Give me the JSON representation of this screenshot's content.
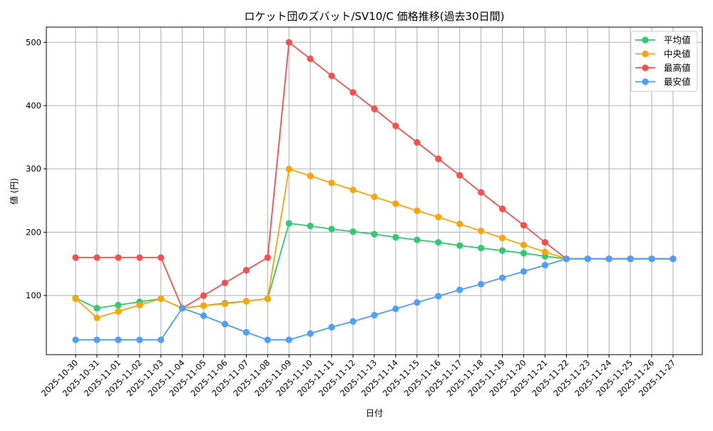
{
  "chart_data": {
    "type": "line",
    "title": "ロケット団のズバット/SV10/C 価格推移(過去30日間)",
    "xlabel": "日付",
    "ylabel": "値 (円)",
    "ylim": [
      6.6,
      524
    ],
    "yticks": [
      100,
      200,
      300,
      400,
      500
    ],
    "grid": true,
    "legend_position": "upper right",
    "x": [
      "2025-10-30",
      "2025-10-31",
      "2025-11-01",
      "2025-11-02",
      "2025-11-03",
      "2025-11-04",
      "2025-11-05",
      "2025-11-06",
      "2025-11-07",
      "2025-11-08",
      "2025-11-09",
      "2025-11-10",
      "2025-11-11",
      "2025-11-12",
      "2025-11-13",
      "2025-11-14",
      "2025-11-15",
      "2025-11-16",
      "2025-11-17",
      "2025-11-18",
      "2025-11-19",
      "2025-11-20",
      "2025-11-21",
      "2025-11-22",
      "2025-11-23",
      "2025-11-24",
      "2025-11-25",
      "2025-11-26",
      "2025-11-27"
    ],
    "series": [
      {
        "name": "平均値",
        "color": "#2ecc71",
        "values": [
          96,
          80,
          85,
          90,
          95,
          80,
          84,
          88,
          91,
          95,
          214,
          210,
          205,
          201,
          197,
          192,
          188,
          184,
          179,
          175,
          171,
          167,
          162,
          158,
          158,
          158,
          158,
          158,
          158
        ]
      },
      {
        "name": "中央値",
        "color": "#ffa500",
        "values": [
          95,
          65,
          75,
          85,
          95,
          80,
          84,
          87,
          91,
          95,
          300,
          289,
          278,
          267,
          256,
          245,
          234,
          224,
          213,
          202,
          191,
          180,
          169,
          158,
          158,
          158,
          158,
          158,
          158
        ]
      },
      {
        "name": "最高値",
        "color": "#ff4d4d",
        "values": [
          160,
          160,
          160,
          160,
          160,
          80,
          100,
          120,
          140,
          160,
          500,
          474,
          447,
          421,
          395,
          368,
          342,
          316,
          290,
          263,
          237,
          211,
          184,
          158,
          158,
          158,
          158,
          158,
          158
        ]
      },
      {
        "name": "最安値",
        "color": "#4d9fff",
        "values": [
          30,
          30,
          30,
          30,
          30,
          80,
          68,
          55,
          42,
          30,
          30,
          40,
          50,
          59,
          69,
          79,
          89,
          99,
          109,
          118,
          128,
          138,
          148,
          158,
          158,
          158,
          158,
          158,
          158
        ]
      }
    ]
  }
}
